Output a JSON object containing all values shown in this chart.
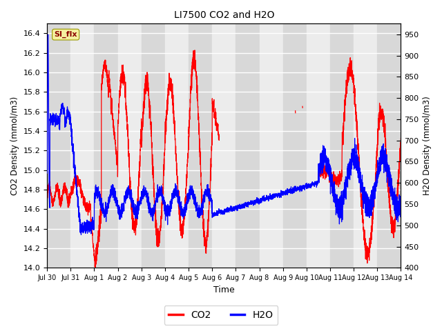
{
  "title": "LI7500 CO2 and H2O",
  "xlabel": "Time",
  "ylabel_left": "CO2 Density (mmol/m3)",
  "ylabel_right": "H2O Density (mmol/m3)",
  "co2_ylim": [
    14.0,
    16.5
  ],
  "h2o_ylim": [
    400,
    975
  ],
  "co2_yticks": [
    14.0,
    14.2,
    14.4,
    14.6,
    14.8,
    15.0,
    15.2,
    15.4,
    15.6,
    15.8,
    16.0,
    16.2,
    16.4
  ],
  "h2o_yticks": [
    400,
    450,
    500,
    550,
    600,
    650,
    700,
    750,
    800,
    850,
    900,
    950
  ],
  "xtick_labels": [
    "Jul 30",
    "Jul 31",
    "Aug 1",
    "Aug 2",
    "Aug 3",
    "Aug 4",
    "Aug 5",
    "Aug 6",
    "Aug 7",
    "Aug 8",
    "Aug 9",
    "Aug 10",
    "Aug 11",
    "Aug 12",
    "Aug 13",
    "Aug 14"
  ],
  "annotation_text": "SI_flx",
  "co2_color": "#ff0000",
  "h2o_color": "#0000ff",
  "bg_color_light": "#ececec",
  "bg_color_dark": "#d8d8d8",
  "grid_color": "#ffffff",
  "n_points": 4000
}
